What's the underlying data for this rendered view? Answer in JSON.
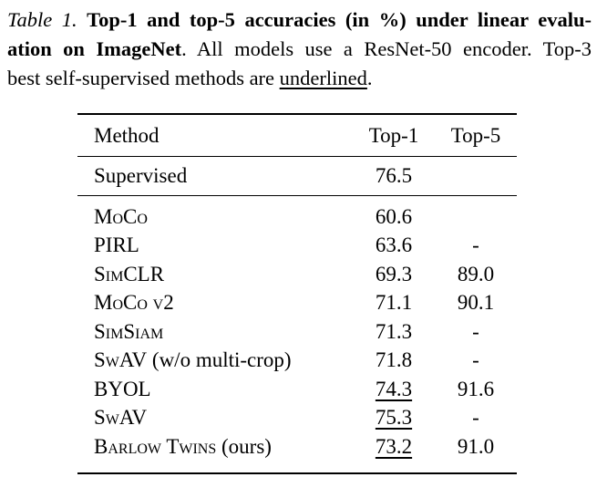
{
  "caption": {
    "label": "Table 1.",
    "title_line1": "Top-1 and top-5 accuracies (in %) under linear evalu-",
    "title_line2": "ation on ImageNet",
    "rest_line2": ". All models use a ResNet-50 encoder. Top-3",
    "line3_pre": "best self-supervised methods are ",
    "line3_underlined": "underlined",
    "line3_post": "."
  },
  "table": {
    "columns": {
      "method": "Method",
      "top1": "Top-1",
      "top5": "Top-5"
    },
    "supervised_row": {
      "method": "Supervised",
      "top1": "76.5",
      "top5": ""
    },
    "rows": [
      {
        "method": "MoCo",
        "suffix": "",
        "top1": "60.6",
        "top5": "",
        "top1_underlined": false
      },
      {
        "method": "PIRL",
        "suffix": "",
        "top1": "63.6",
        "top5": "-",
        "top1_underlined": false
      },
      {
        "method": "SimCLR",
        "suffix": "",
        "top1": "69.3",
        "top5": "89.0",
        "top1_underlined": false
      },
      {
        "method": "MoCo v2",
        "suffix": "",
        "top1": "71.1",
        "top5": "90.1",
        "top1_underlined": false
      },
      {
        "method": "SimSiam",
        "suffix": "",
        "top1": "71.3",
        "top5": "-",
        "top1_underlined": false
      },
      {
        "method": "SwAV",
        "suffix": " (w/o multi-crop)",
        "top1": "71.8",
        "top5": "-",
        "top1_underlined": false
      },
      {
        "method": "BYOL",
        "suffix": "",
        "top1": "74.3",
        "top5": "91.6",
        "top1_underlined": true
      },
      {
        "method": "SwAV",
        "suffix": "",
        "top1": "75.3",
        "top5": "-",
        "top1_underlined": true
      },
      {
        "method": "Barlow Twins",
        "suffix": " (ours)",
        "top1": "73.2",
        "top5": "91.0",
        "top1_underlined": true
      }
    ]
  }
}
